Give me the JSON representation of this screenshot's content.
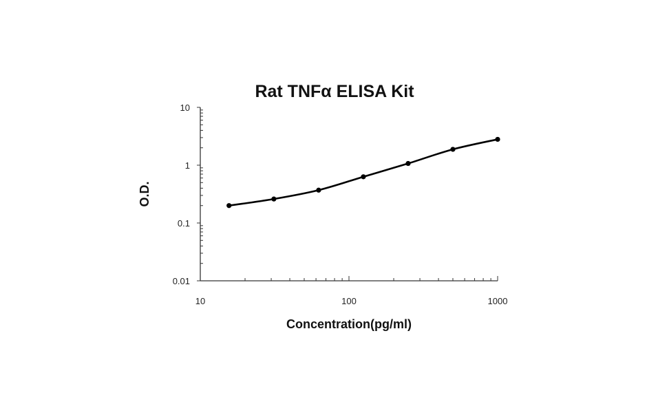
{
  "chart_data": {
    "type": "line",
    "title": "Rat TNFα ELISA Kit",
    "xlabel": "Concentration(pg/ml)",
    "ylabel": "O.D.",
    "xscale": "log",
    "yscale": "log",
    "xlim": [
      10,
      1000
    ],
    "ylim": [
      0.01,
      10
    ],
    "xticks": [
      10,
      100,
      1000
    ],
    "xtick_labels": [
      "10",
      "100",
      "1000"
    ],
    "yticks": [
      0.01,
      0.1,
      1,
      10
    ],
    "ytick_labels": [
      "0.01",
      "0.1",
      "1",
      "10"
    ],
    "grid": false,
    "legend": "none",
    "series": [
      {
        "x": [
          15.6,
          31.25,
          62.5,
          125,
          250,
          500,
          1000
        ],
        "y": [
          0.2,
          0.26,
          0.37,
          0.63,
          1.07,
          1.88,
          2.8
        ]
      }
    ],
    "colors": {
      "line": "#000000",
      "axis": "#333333"
    }
  }
}
